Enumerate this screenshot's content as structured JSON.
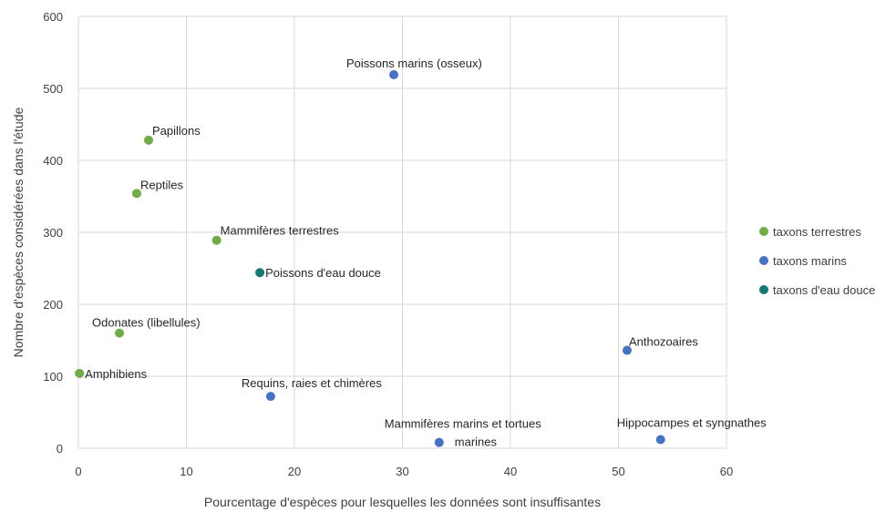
{
  "chart_data": {
    "type": "scatter",
    "title": "",
    "xlabel": "Pourcentage d'espèces pour lesquelles les données sont insuffisantes",
    "ylabel": "Nombre d'espèces considérées dans l'étude",
    "xlim": [
      0,
      60
    ],
    "ylim": [
      0,
      600
    ],
    "xticks": [
      0,
      10,
      20,
      30,
      40,
      50,
      60
    ],
    "yticks": [
      0,
      100,
      200,
      300,
      400,
      500,
      600
    ],
    "grid": true,
    "legend_position": "right",
    "series": [
      {
        "name": "taxons terrestres",
        "color": "#70ad47",
        "points": [
          {
            "label": "Papillons",
            "x": 6.5,
            "y": 428
          },
          {
            "label": "Reptiles",
            "x": 5.4,
            "y": 354
          },
          {
            "label": "Mammifères terrestres",
            "x": 12.8,
            "y": 289
          },
          {
            "label": "Odonates (libellules)",
            "x": 3.8,
            "y": 160
          },
          {
            "label": "Amphibiens",
            "x": 0.1,
            "y": 104
          }
        ]
      },
      {
        "name": "taxons marins",
        "color": "#4472c4",
        "points": [
          {
            "label": "Poissons marins (osseux)",
            "x": 29.2,
            "y": 519
          },
          {
            "label": "Anthozoaires",
            "x": 50.8,
            "y": 136
          },
          {
            "label": "Requins, raies et chimères",
            "x": 17.8,
            "y": 72
          },
          {
            "label": "Mammifères marins et tortues marines",
            "x": 33.4,
            "y": 8
          },
          {
            "label": "Hippocampes et syngnathes",
            "x": 53.9,
            "y": 12
          }
        ]
      },
      {
        "name": "taxons d'eau douce",
        "color": "#0f7b73",
        "points": [
          {
            "label": "Poissons d'eau douce",
            "x": 16.8,
            "y": 244
          }
        ]
      }
    ]
  }
}
